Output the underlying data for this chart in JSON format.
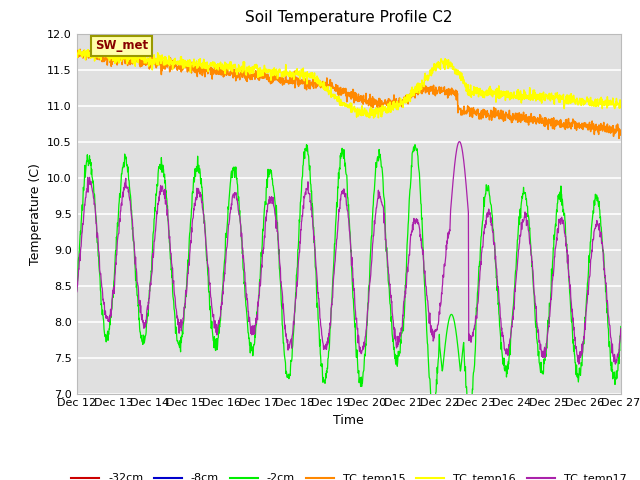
{
  "title": "Soil Temperature Profile C2",
  "xlabel": "Time",
  "ylabel": "Temperature (C)",
  "ylim": [
    7.0,
    12.0
  ],
  "yticks": [
    7.0,
    7.5,
    8.0,
    8.5,
    9.0,
    9.5,
    10.0,
    10.5,
    11.0,
    11.5,
    12.0
  ],
  "xtick_labels": [
    "Dec 12",
    "Dec 13",
    "Dec 14",
    "Dec 15",
    "Dec 16",
    "Dec 17",
    "Dec 18",
    "Dec 19",
    "Dec 20",
    "Dec 21",
    "Dec 22",
    "Dec 23",
    "Dec 24",
    "Dec 25",
    "Dec 26",
    "Dec 27"
  ],
  "bg_color": "#e0e0e0",
  "green_color": "#00ee00",
  "orange_color": "#ff8800",
  "yellow_color": "#ffff00",
  "purple_color": "#aa22aa",
  "red_color": "#cc0000",
  "blue_color": "#0000cc",
  "sw_met_label": "SW_met",
  "sw_met_bg": "#ffffaa",
  "sw_met_border": "#999900",
  "sw_met_text_color": "#880000"
}
